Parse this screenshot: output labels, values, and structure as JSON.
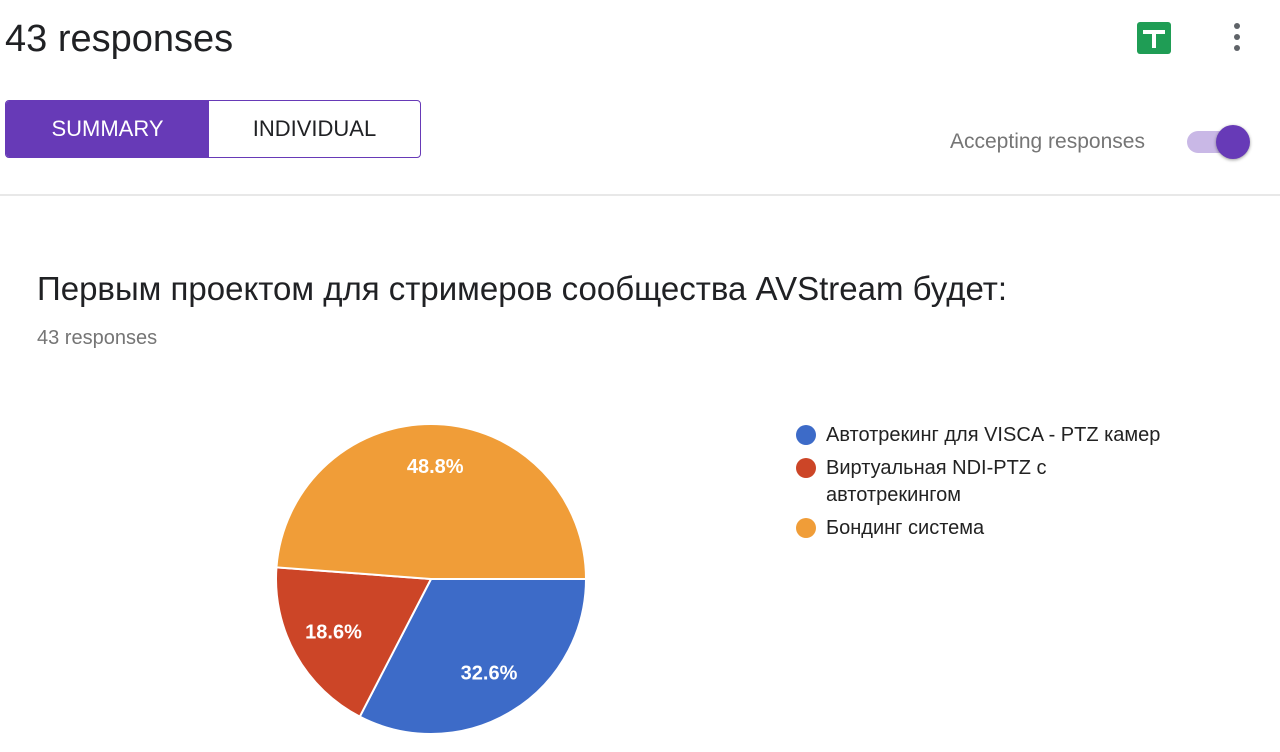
{
  "header": {
    "title": "43 responses",
    "tabs": [
      "SUMMARY",
      "INDIVIDUAL"
    ],
    "status": "Accepting responses"
  },
  "chart_data": {
    "type": "pie",
    "title": "Первым проектом для стримеров сообщества AVStream будет:",
    "subtitle": "43 responses",
    "categories": [
      "Автотрекинг для VISCA - PTZ камер",
      "Виртуальная NDI-PTZ с автотрекингом",
      "Бондинг система"
    ],
    "values": [
      32.6,
      18.6,
      48.8
    ],
    "value_labels": [
      "32.6%",
      "18.6%",
      "48.8%"
    ],
    "colors": [
      "#3d6bc8",
      "#cc4527",
      "#f09d38"
    ]
  }
}
